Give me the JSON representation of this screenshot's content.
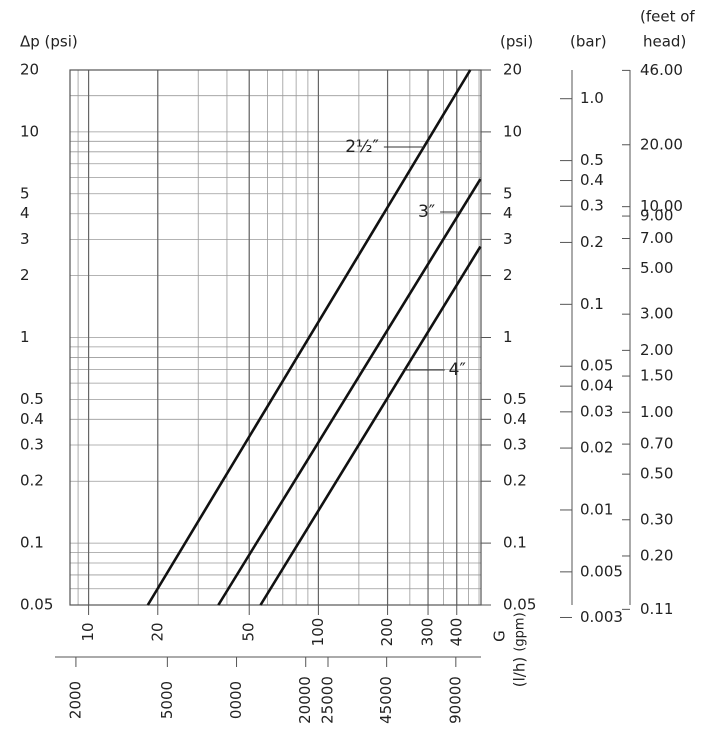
{
  "chart_data": {
    "type": "line",
    "y_title": "Δp (psi)",
    "y2_title": "(psi)",
    "bar_title": "(bar)",
    "feet_title": [
      "(feet of",
      "head)"
    ],
    "x_title": "G",
    "x_unit": "(gpm)",
    "x2_unit": "(l/h)",
    "log_x": true,
    "log_y": true,
    "grid": true,
    "xlim": [
      8.3,
      510
    ],
    "xticks": [
      10,
      20,
      50,
      100,
      200,
      300,
      400
    ],
    "x_minor_ticks": [
      9,
      10,
      20,
      30,
      40,
      50,
      60,
      70,
      80,
      90,
      100,
      150,
      200,
      250,
      300,
      350,
      400,
      450,
      500
    ],
    "ylim": [
      0.05,
      20
    ],
    "yticks": [
      20,
      10,
      5,
      4,
      3,
      2,
      1,
      0.5,
      0.4,
      0.3,
      0.2,
      0.1,
      0.05
    ],
    "y_minor_ticks": [
      0.06,
      0.07,
      0.08,
      0.09,
      0.1,
      0.2,
      0.3,
      0.4,
      0.5,
      0.6,
      0.7,
      0.8,
      0.9,
      1,
      2,
      3,
      4,
      5,
      6,
      7,
      8,
      9,
      10,
      15
    ],
    "x2lim": [
      1885,
      115821
    ],
    "x2ticks": [
      2000,
      5000,
      {
        "value": 10000,
        "label": "0000"
      },
      20000,
      25000,
      45000,
      90000
    ],
    "barlim": [
      0.00345,
      1.379
    ],
    "barticks": [
      {
        "value": 1,
        "label": "1.0"
      },
      0.5,
      0.4,
      0.3,
      0.2,
      0.1,
      0.05,
      0.04,
      0.03,
      0.02,
      0.01,
      0.005,
      0.003
    ],
    "feetlim": [
      0.1155,
      46.2
    ],
    "feetticks": [
      {
        "value": 46,
        "label": "46.00"
      },
      {
        "value": 20,
        "label": "20.00"
      },
      {
        "value": 10,
        "label": "10.00"
      },
      {
        "value": 9,
        "label": "9.00"
      },
      {
        "value": 7,
        "label": "7.00"
      },
      {
        "value": 5,
        "label": "5.00"
      },
      {
        "value": 3,
        "label": "3.00"
      },
      {
        "value": 2,
        "label": "2.00"
      },
      {
        "value": 1.5,
        "label": "1.50"
      },
      {
        "value": 1,
        "label": "1.00"
      },
      {
        "value": 0.7,
        "label": "0.70"
      },
      {
        "value": 0.5,
        "label": "0.50"
      },
      {
        "value": 0.3,
        "label": "0.30"
      },
      {
        "value": 0.2,
        "label": "0.20"
      },
      {
        "value": 0.11,
        "label": "0.11"
      }
    ],
    "series": [
      {
        "name": "2½″",
        "color": "#111111",
        "x": [
          18.1,
          458
        ],
        "values": [
          0.05,
          20
        ]
      },
      {
        "name": "3″",
        "color": "#111111",
        "x": [
          36.7,
          507
        ],
        "values": [
          0.05,
          5.9
        ]
      },
      {
        "name": "4″",
        "color": "#111111",
        "x": [
          56,
          507
        ],
        "values": [
          0.05,
          2.77
        ]
      }
    ]
  }
}
